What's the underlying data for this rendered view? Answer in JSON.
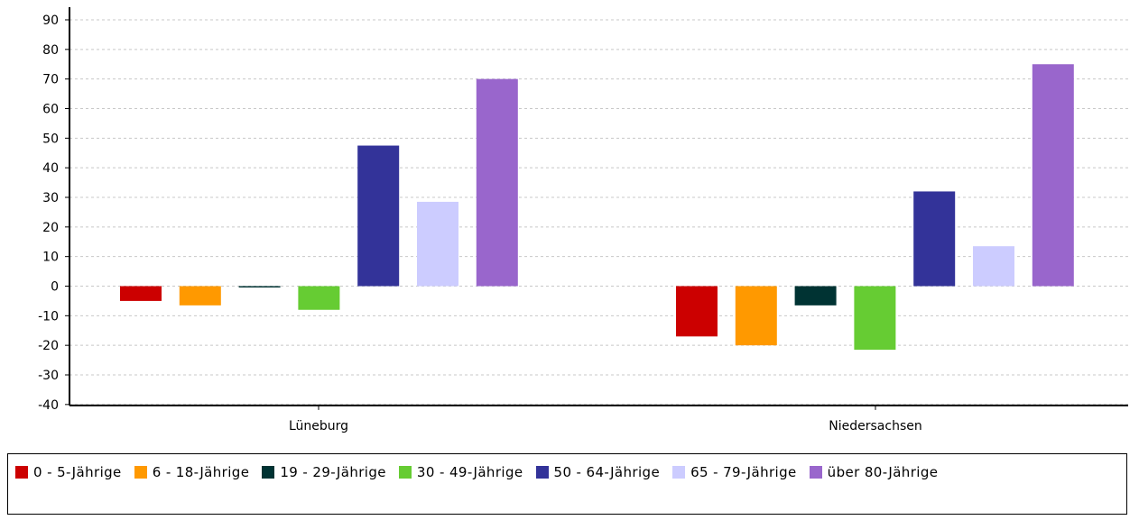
{
  "chart_data": {
    "type": "bar",
    "categories": [
      "Lüneburg",
      "Niedersachsen"
    ],
    "series": [
      {
        "name": "0 - 5-Jährige",
        "color": "#cc0000",
        "values": [
          -5,
          -17
        ]
      },
      {
        "name": "6 - 18-Jährige",
        "color": "#ff9900",
        "values": [
          -6.5,
          -20
        ]
      },
      {
        "name": "19 - 29-Jährige",
        "color": "#003333",
        "values": [
          -0.3,
          -6.5
        ]
      },
      {
        "name": "30 - 49-Jährige",
        "color": "#66cc33",
        "values": [
          -8,
          -21.5
        ]
      },
      {
        "name": "50 - 64-Jährige",
        "color": "#333399",
        "values": [
          47.5,
          32
        ]
      },
      {
        "name": "65 - 79-Jährige",
        "color": "#ccccff",
        "values": [
          28.5,
          13.5
        ]
      },
      {
        "name": "über 80-Jährige",
        "color": "#9966cc",
        "values": [
          70,
          75
        ]
      }
    ],
    "ylim": [
      -40,
      90
    ],
    "yticks": [
      "-40",
      "-30",
      "-20",
      "-10",
      "0",
      "10",
      "20",
      "30",
      "40",
      "50",
      "60",
      "70",
      "80",
      "90"
    ],
    "grid": true,
    "legend_position": "bottom"
  }
}
